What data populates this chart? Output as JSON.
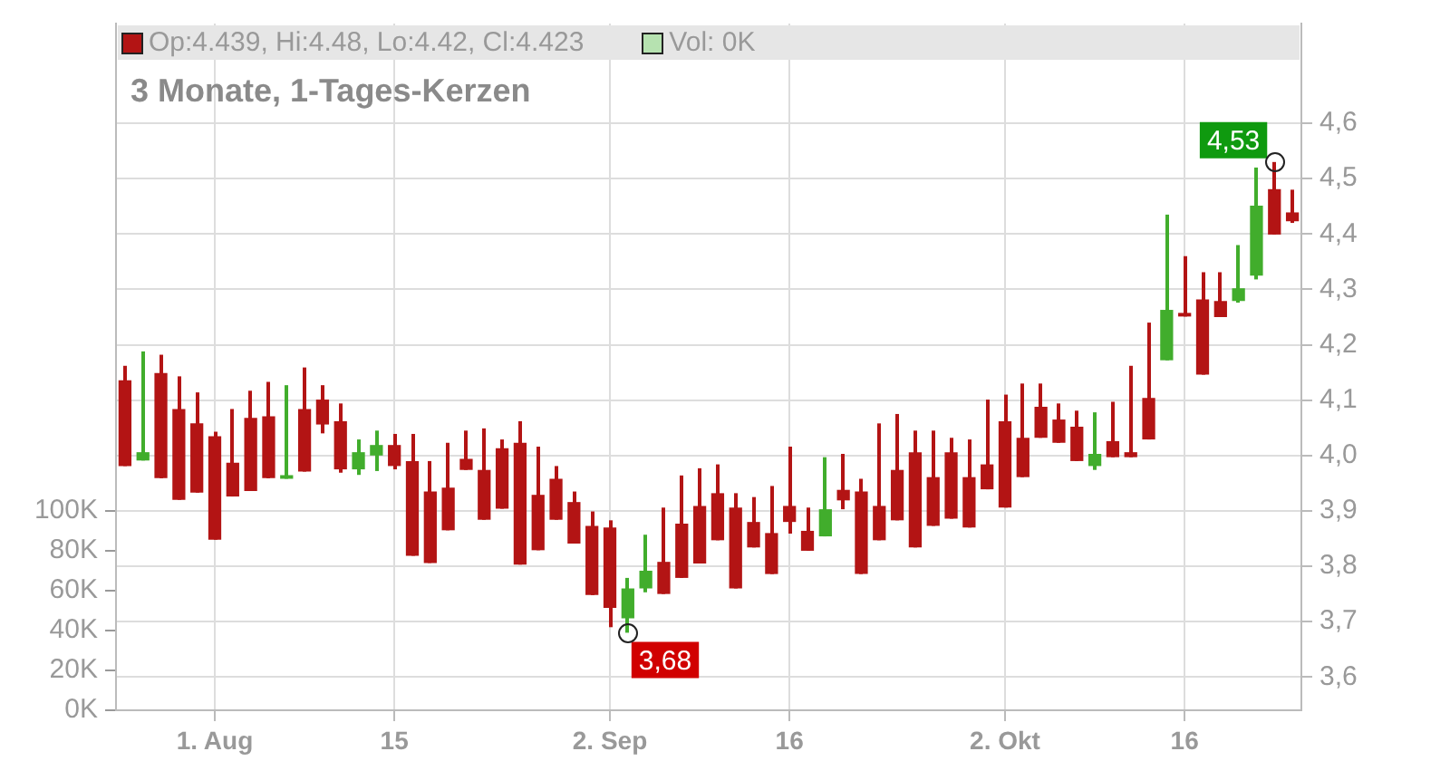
{
  "chart_data": {
    "type": "candlestick",
    "title": "3 Monate, 1-Tages-Kerzen",
    "annotations": [
      "Op:4.439, Hi:4.48, Lo:4.42, Cl:4.423",
      "Vol: 0K",
      "4,53",
      "3,68"
    ],
    "categories": [
      null,
      null,
      null,
      null,
      null,
      "1. Aug",
      null,
      null,
      null,
      null,
      null,
      null,
      null,
      null,
      null,
      "15",
      null,
      null,
      null,
      null,
      null,
      null,
      null,
      null,
      null,
      null,
      null,
      "2. Sep",
      null,
      null,
      null,
      null,
      null,
      null,
      null,
      null,
      null,
      "16",
      null,
      null,
      null,
      null,
      null,
      null,
      null,
      null,
      null,
      null,
      null,
      "2. Okt",
      null,
      null,
      null,
      null,
      null,
      null,
      null,
      null,
      null,
      "16",
      null,
      null,
      null,
      null,
      null,
      null
    ],
    "ohlc": [
      [
        4.136,
        4.162,
        3.981,
        3.981
      ],
      [
        3.991,
        4.188,
        3.991,
        4.006
      ],
      [
        4.149,
        4.182,
        3.959,
        3.959
      ],
      [
        4.084,
        4.143,
        3.92,
        3.92
      ],
      [
        4.058,
        4.114,
        3.933,
        3.933
      ],
      [
        4.035,
        4.043,
        3.848,
        3.848
      ],
      [
        3.987,
        4.084,
        3.926,
        3.926
      ],
      [
        4.068,
        4.117,
        3.936,
        3.936
      ],
      [
        4.071,
        4.133,
        3.959,
        3.959
      ],
      [
        3.958,
        4.127,
        3.958,
        3.961
      ],
      [
        4.084,
        4.159,
        3.971,
        3.971
      ],
      [
        4.101,
        4.127,
        4.04,
        4.056
      ],
      [
        4.062,
        4.094,
        3.969,
        3.975
      ],
      [
        3.975,
        4.029,
        3.965,
        4.006
      ],
      [
        4.0,
        4.045,
        3.972,
        4.019
      ],
      [
        4.019,
        4.039,
        3.975,
        3.981
      ],
      [
        3.99,
        4.039,
        3.819,
        3.819
      ],
      [
        3.935,
        3.99,
        3.806,
        3.806
      ],
      [
        3.942,
        4.023,
        3.865,
        3.865
      ],
      [
        3.994,
        4.045,
        3.974,
        3.974
      ],
      [
        3.974,
        4.049,
        3.884,
        3.884
      ],
      [
        4.013,
        4.029,
        3.904,
        3.904
      ],
      [
        4.023,
        4.062,
        3.803,
        3.803
      ],
      [
        3.929,
        4.016,
        3.829,
        3.829
      ],
      [
        3.958,
        3.981,
        3.884,
        3.884
      ],
      [
        3.916,
        3.935,
        3.841,
        3.841
      ],
      [
        3.873,
        3.899,
        3.748,
        3.748
      ],
      [
        3.87,
        3.883,
        3.69,
        3.725
      ],
      [
        3.706,
        3.779,
        3.68,
        3.76
      ],
      [
        3.76,
        3.857,
        3.753,
        3.792
      ],
      [
        3.808,
        3.906,
        3.75,
        3.75
      ],
      [
        3.877,
        3.964,
        3.779,
        3.779
      ],
      [
        3.909,
        3.977,
        3.805,
        3.805
      ],
      [
        3.932,
        3.984,
        3.847,
        3.847
      ],
      [
        3.906,
        3.932,
        3.76,
        3.76
      ],
      [
        3.88,
        3.925,
        3.834,
        3.834
      ],
      [
        3.86,
        3.945,
        3.786,
        3.786
      ],
      [
        3.909,
        4.016,
        3.859,
        3.88
      ],
      [
        3.864,
        3.906,
        3.828,
        3.828
      ],
      [
        3.854,
        3.997,
        3.854,
        3.903
      ],
      [
        3.938,
        4.003,
        3.903,
        3.919
      ],
      [
        3.935,
        3.958,
        3.786,
        3.786
      ],
      [
        3.909,
        4.058,
        3.847,
        3.847
      ],
      [
        3.974,
        4.075,
        3.883,
        3.883
      ],
      [
        4.006,
        4.045,
        3.834,
        3.834
      ],
      [
        3.961,
        4.045,
        3.873,
        3.873
      ],
      [
        4.006,
        4.032,
        3.886,
        3.886
      ],
      [
        3.961,
        4.029,
        3.87,
        3.87
      ],
      [
        3.984,
        4.101,
        3.939,
        3.939
      ],
      [
        4.062,
        4.11,
        3.906,
        3.906
      ],
      [
        4.032,
        4.13,
        3.961,
        3.961
      ],
      [
        4.088,
        4.13,
        4.032,
        4.032
      ],
      [
        4.065,
        4.094,
        4.023,
        4.023
      ],
      [
        4.052,
        4.081,
        3.99,
        3.99
      ],
      [
        3.981,
        4.078,
        3.974,
        4.003
      ],
      [
        4.026,
        4.097,
        3.997,
        3.997
      ],
      [
        4.006,
        4.162,
        3.997,
        3.997
      ],
      [
        4.104,
        4.24,
        4.029,
        4.029
      ],
      [
        4.172,
        4.435,
        4.172,
        4.263
      ],
      [
        4.257,
        4.36,
        4.251,
        4.251
      ],
      [
        4.282,
        4.331,
        4.146,
        4.146
      ],
      [
        4.279,
        4.331,
        4.25,
        4.25
      ],
      [
        4.279,
        4.38,
        4.276,
        4.302
      ],
      [
        4.325,
        4.52,
        4.318,
        4.451
      ],
      [
        4.481,
        4.53,
        4.399,
        4.399
      ],
      [
        4.439,
        4.48,
        4.42,
        4.423
      ]
    ],
    "colors": [
      "#b31414",
      "#41ad2c",
      "#b31414",
      "#b31414",
      "#b31414",
      "#b31414",
      "#b31414",
      "#b31414",
      "#b31414",
      "#41ad2c",
      "#b31414",
      "#b31414",
      "#b31414",
      "#41ad2c",
      "#41ad2c",
      "#b31414",
      "#b31414",
      "#b31414",
      "#b31414",
      "#b31414",
      "#b31414",
      "#b31414",
      "#b31414",
      "#b31414",
      "#b31414",
      "#b31414",
      "#b31414",
      "#b31414",
      "#41ad2c",
      "#41ad2c",
      "#b31414",
      "#b31414",
      "#b31414",
      "#b31414",
      "#b31414",
      "#b31414",
      "#b31414",
      "#b31414",
      "#b31414",
      "#41ad2c",
      "#b31414",
      "#b31414",
      "#b31414",
      "#b31414",
      "#b31414",
      "#b31414",
      "#b31414",
      "#b31414",
      "#b31414",
      "#b31414",
      "#b31414",
      "#b31414",
      "#b31414",
      "#b31414",
      "#41ad2c",
      "#b31414",
      "#b31414",
      "#b31414",
      "#41ad2c",
      "#b31414",
      "#b31414",
      "#b31414",
      "#41ad2c",
      "#41ad2c",
      "#b31414",
      "#b31414"
    ],
    "ylim": [
      3.54,
      4.78
    ],
    "yticks": [
      {
        "value": 3.6,
        "label": "3,6"
      },
      {
        "value": 3.7,
        "label": "3,7"
      },
      {
        "value": 3.8,
        "label": "3,8"
      },
      {
        "value": 3.9,
        "label": "3,9"
      },
      {
        "value": 4.0,
        "label": "4,0"
      },
      {
        "value": 4.1,
        "label": "4,1"
      },
      {
        "value": 4.2,
        "label": "4,2"
      },
      {
        "value": 4.3,
        "label": "4,3"
      },
      {
        "value": 4.4,
        "label": "4,4"
      },
      {
        "value": 4.5,
        "label": "4,5"
      },
      {
        "value": 4.6,
        "label": "4,6"
      }
    ],
    "y2lim": [
      0,
      344000
    ],
    "y2ticks": [
      {
        "value": 0,
        "label": "0K"
      },
      {
        "value": 20000,
        "label": "20K"
      },
      {
        "value": 40000,
        "label": "40K"
      },
      {
        "value": 60000,
        "label": "60K"
      },
      {
        "value": 80000,
        "label": "80K"
      },
      {
        "value": 100000,
        "label": "100K"
      }
    ],
    "grid": true,
    "legend": false
  }
}
